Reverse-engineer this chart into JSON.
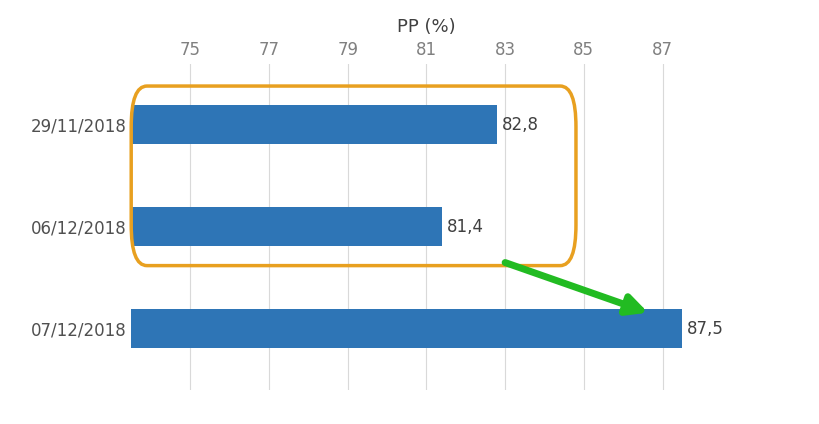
{
  "categories": [
    "07/12/2018",
    "06/12/2018",
    "29/11/2018"
  ],
  "values": [
    87.5,
    81.4,
    82.8
  ],
  "bar_color": "#2E75B6",
  "bar_labels": [
    "87,5",
    "81,4",
    "82,8"
  ],
  "xlabel": "PP (%)",
  "xlim": [
    73.5,
    88.5
  ],
  "xticks": [
    75,
    77,
    79,
    81,
    83,
    85,
    87
  ],
  "background_color": "#ffffff",
  "tick_color": "#808080",
  "grid_color": "#d9d9d9",
  "box_color": "#E8A020",
  "arrow_color": "#22BB22",
  "bar_height": 0.38,
  "label_fontsize": 12,
  "tick_fontsize": 12,
  "xlabel_fontsize": 13
}
